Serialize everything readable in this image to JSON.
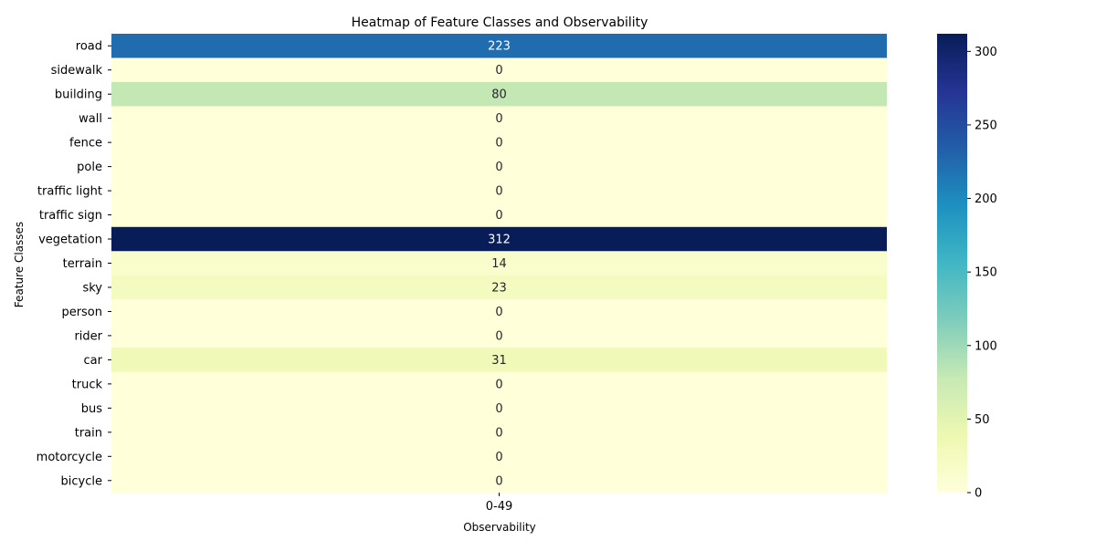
{
  "chart_data": {
    "type": "heatmap",
    "title": "Heatmap of Feature Classes and Observability",
    "xlabel": "Observability",
    "ylabel": "Feature Classes",
    "x_categories": [
      "0-49"
    ],
    "y_categories": [
      "road",
      "sidewalk",
      "building",
      "wall",
      "fence",
      "pole",
      "traffic light",
      "traffic sign",
      "vegetation",
      "terrain",
      "sky",
      "person",
      "rider",
      "car",
      "truck",
      "bus",
      "train",
      "motorcycle",
      "bicycle"
    ],
    "values": [
      223,
      0,
      80,
      0,
      0,
      0,
      0,
      0,
      312,
      14,
      23,
      0,
      0,
      31,
      0,
      0,
      0,
      0,
      0
    ],
    "colorscale": "YlGnBu",
    "vmin": 0,
    "vmax": 312,
    "colorbar_ticks": [
      0,
      50,
      100,
      150,
      200,
      250,
      300
    ],
    "annotations": true,
    "grid": false
  }
}
